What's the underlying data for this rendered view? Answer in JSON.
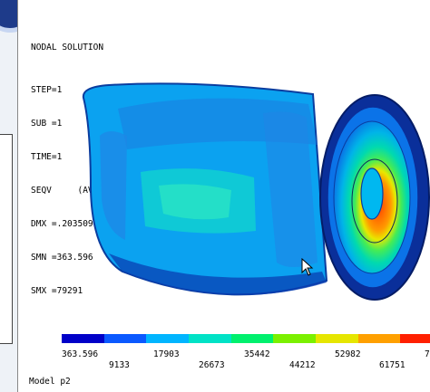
{
  "result": {
    "title": "NODAL SOLUTION",
    "lines": [
      "STEP=1",
      "SUB =1",
      "TIME=1",
      "SEQV     (AVG)",
      "DMX =.203509",
      "SMN =363.596",
      "SMX =79291"
    ]
  },
  "legend": {
    "labels_top": [
      "363.596",
      "17903",
      "35442",
      "52982",
      "7"
    ],
    "labels_bottom": [
      "9133",
      "26673",
      "44212",
      "61751"
    ],
    "colors": [
      "#0000c8",
      "#0b59ff",
      "#00b5ff",
      "#00e2c6",
      "#00f06e",
      "#7bf000",
      "#e6e600",
      "#ffa000",
      "#ff2000"
    ]
  },
  "footer": {
    "model": "Model p2"
  }
}
